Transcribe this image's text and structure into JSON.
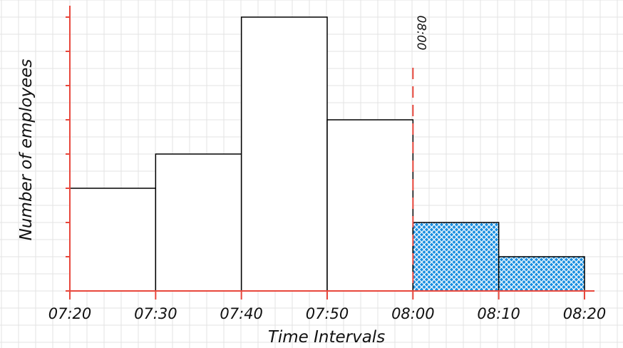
{
  "chart_data": {
    "type": "bar",
    "xlabel": "Time Intervals",
    "ylabel": "Number of employees",
    "categories": [
      "07:20",
      "07:30",
      "07:40",
      "07:50",
      "08:00",
      "08:10",
      "08:20"
    ],
    "bins": [
      {
        "start": "07:20",
        "end": "07:30",
        "value": 3,
        "highlight": false
      },
      {
        "start": "07:30",
        "end": "07:40",
        "value": 4,
        "highlight": false
      },
      {
        "start": "07:40",
        "end": "07:50",
        "value": 8,
        "highlight": false
      },
      {
        "start": "07:50",
        "end": "08:00",
        "value": 5,
        "highlight": false
      },
      {
        "start": "08:00",
        "end": "08:10",
        "value": 2,
        "highlight": true
      },
      {
        "start": "08:10",
        "end": "08:20",
        "value": 1,
        "highlight": true
      }
    ],
    "ylim": [
      0,
      8
    ],
    "y_ticks_labeled": false,
    "grid": true,
    "annotation": {
      "x": "08:00",
      "label": "08:00",
      "style": "dashed vertical line"
    },
    "colors": {
      "axis": "#e8473c",
      "bar_edge": "#000000",
      "highlight_fill": "#1a8fe0",
      "grid": "#e3e3e3",
      "background": "#ffffff"
    }
  }
}
